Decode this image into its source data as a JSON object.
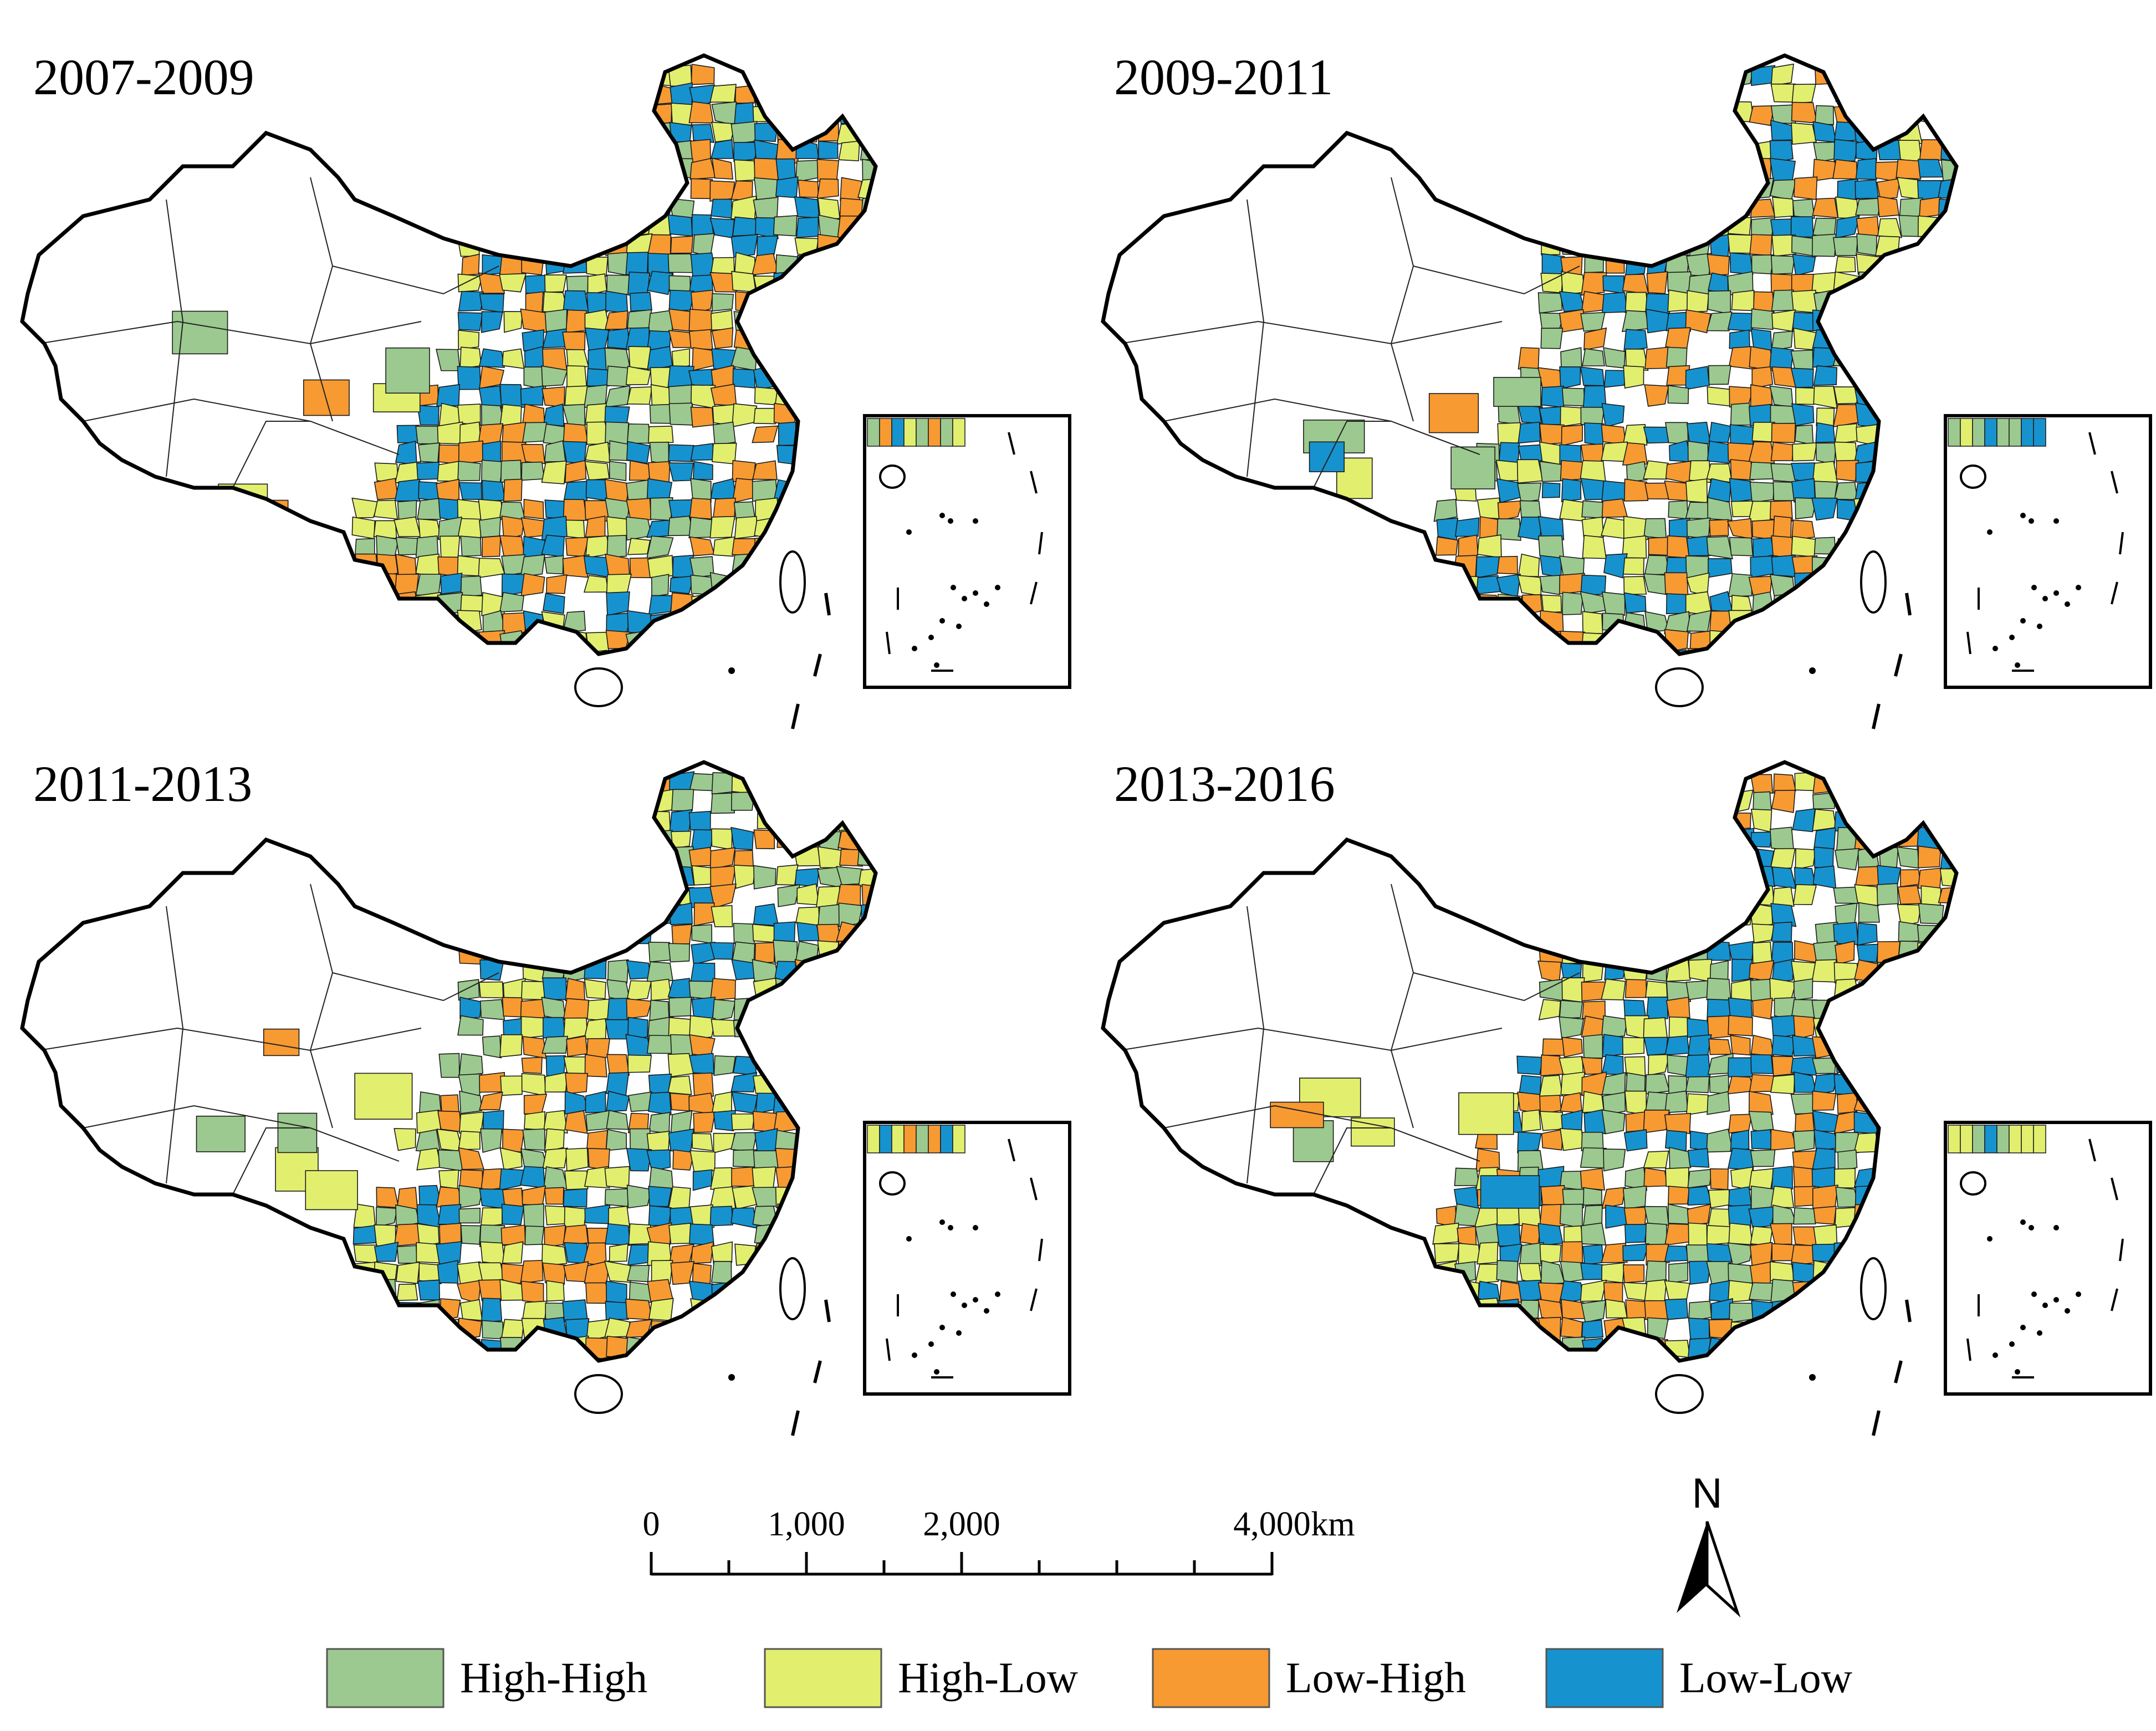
{
  "panels": [
    {
      "title": "2007-2009",
      "seed": 11
    },
    {
      "title": "2009-2011",
      "seed": 29
    },
    {
      "title": "2011-2013",
      "seed": 47
    },
    {
      "title": "2013-2016",
      "seed": 83
    }
  ],
  "categories": [
    {
      "key": "HH",
      "label": "High-High",
      "color": "#9cc98f"
    },
    {
      "key": "HL",
      "label": "High-Low",
      "color": "#e2ef6e"
    },
    {
      "key": "LH",
      "label": "Low-High",
      "color": "#f79a32"
    },
    {
      "key": "LL",
      "label": "Low-Low",
      "color": "#1693cf"
    }
  ],
  "scale_bar": {
    "ticks": [
      "0",
      "1,000",
      "2,000",
      "4,000"
    ],
    "unit": "km"
  },
  "north_arrow": {
    "label": "N"
  },
  "icons": {
    "north": "north-arrow-icon"
  }
}
